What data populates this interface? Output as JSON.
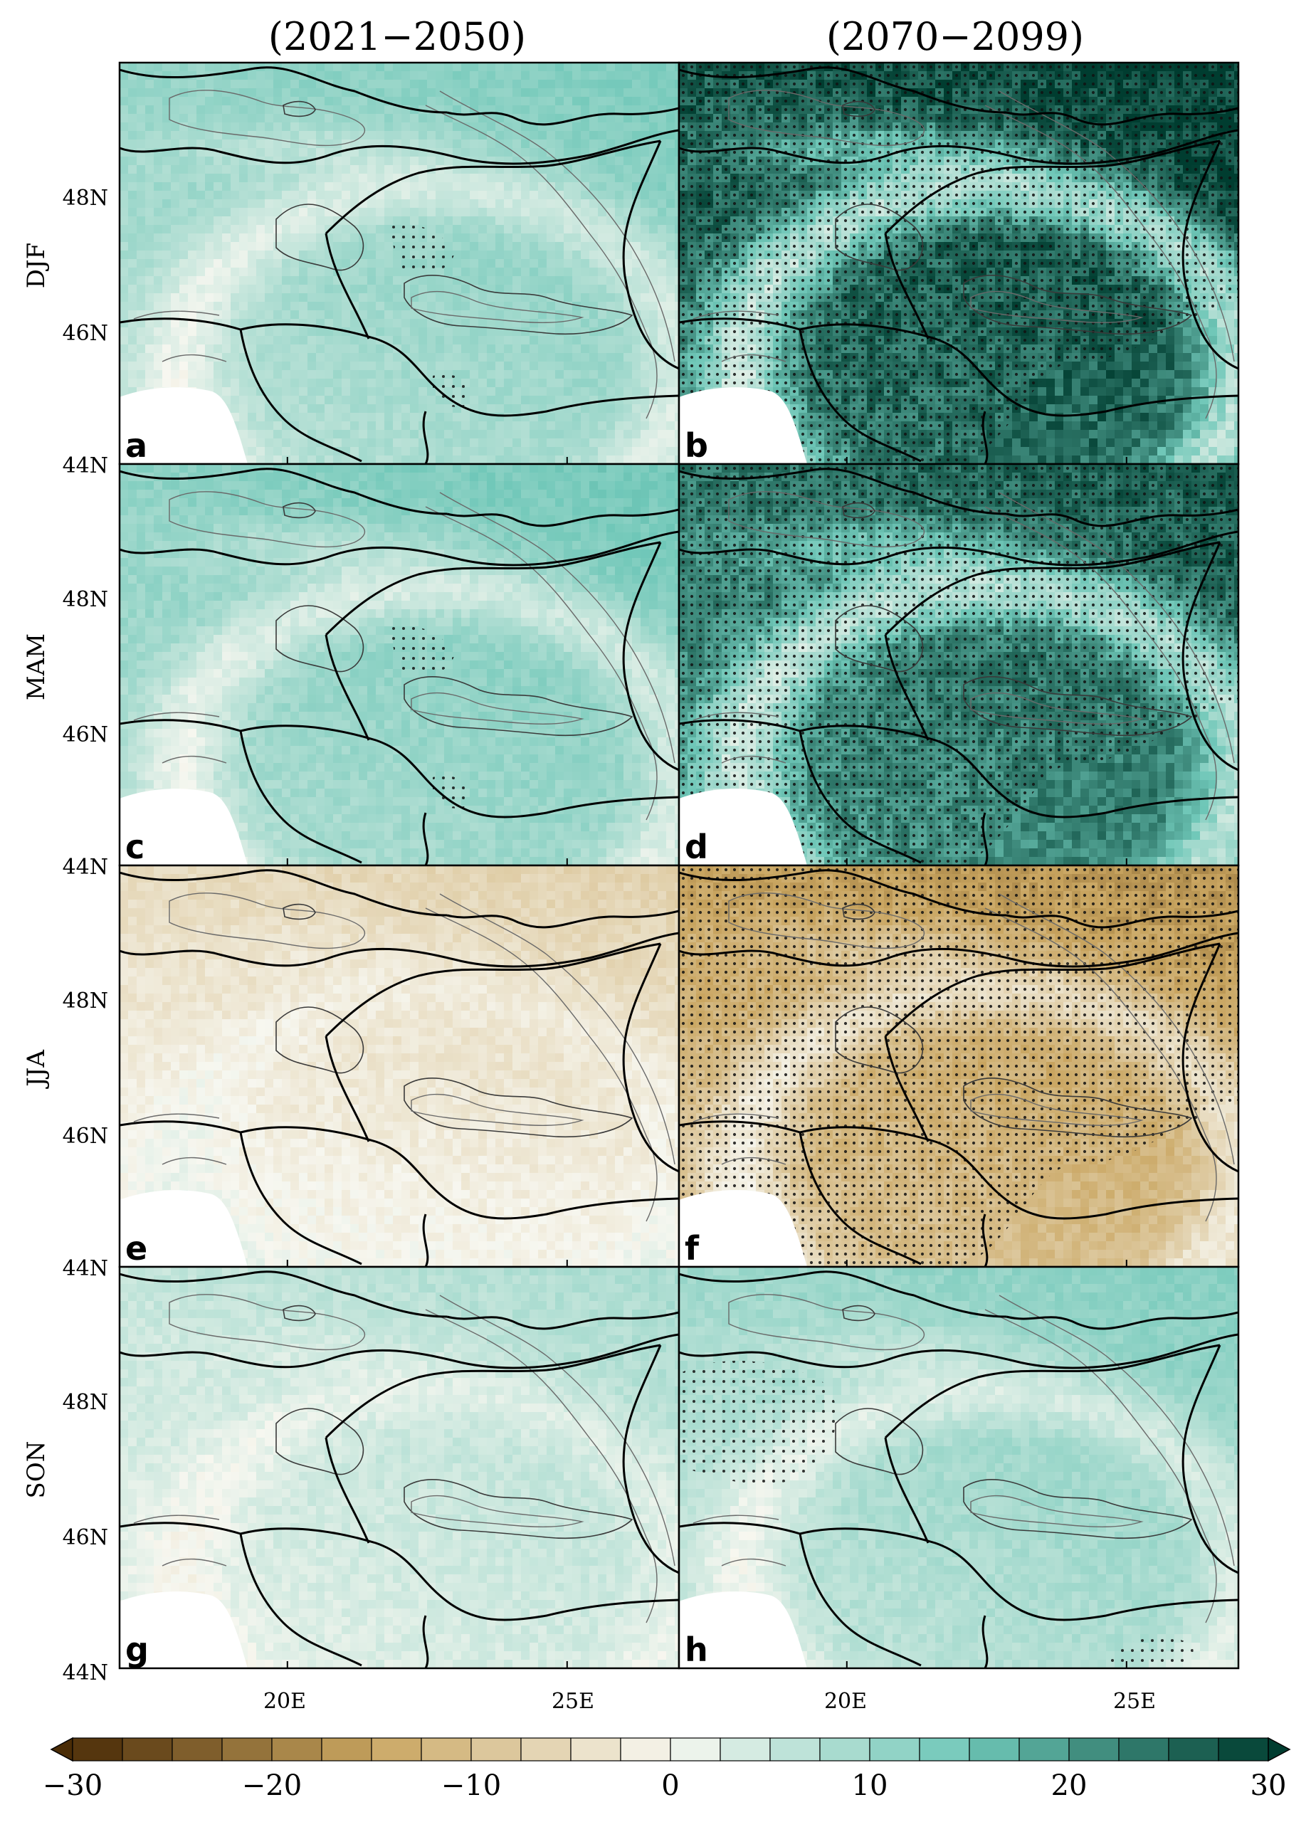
{
  "figure": {
    "column_titles": [
      "(2021−2050)",
      "(2070−2099)"
    ],
    "row_labels": [
      "DJF",
      "MAM",
      "JJA",
      "SON"
    ],
    "lat_ticks": [
      "48N",
      "46N",
      "44N"
    ],
    "lon_ticks": [
      "20E",
      "25E"
    ],
    "panels": [
      {
        "letter": "a",
        "season": "DJF",
        "period": "(2021−2050)",
        "mean_change": 10,
        "stippling": "sparse"
      },
      {
        "letter": "b",
        "season": "DJF",
        "period": "(2070−2099)",
        "mean_change": 26,
        "stippling": "dense"
      },
      {
        "letter": "c",
        "season": "MAM",
        "period": "(2021−2050)",
        "mean_change": 11,
        "stippling": "sparse"
      },
      {
        "letter": "d",
        "season": "MAM",
        "period": "(2070−2099)",
        "mean_change": 23,
        "stippling": "dense"
      },
      {
        "letter": "e",
        "season": "JJA",
        "period": "(2021−2050)",
        "mean_change": -3,
        "stippling": "none"
      },
      {
        "letter": "f",
        "season": "JJA",
        "period": "(2070−2099)",
        "mean_change": -13,
        "stippling": "dense"
      },
      {
        "letter": "g",
        "season": "SON",
        "period": "(2021−2050)",
        "mean_change": 5,
        "stippling": "none"
      },
      {
        "letter": "h",
        "season": "SON",
        "period": "(2070−2099)",
        "mean_change": 9,
        "stippling": "patchy"
      }
    ]
  },
  "colorbar": {
    "min": -30,
    "max": 30,
    "step": 2.5,
    "tick_values": [
      -30,
      -20,
      -10,
      0,
      10,
      20,
      30
    ],
    "tick_labels": [
      "−30",
      "−20",
      "−10",
      "0",
      "10",
      "20",
      "30"
    ],
    "colors": {
      "negative_end": "#4a2c06",
      "negative_mid": "#c9a560",
      "neutral": "#f7f7f0",
      "positive_mid": "#6fc7b8",
      "positive_end": "#003d30"
    }
  }
}
